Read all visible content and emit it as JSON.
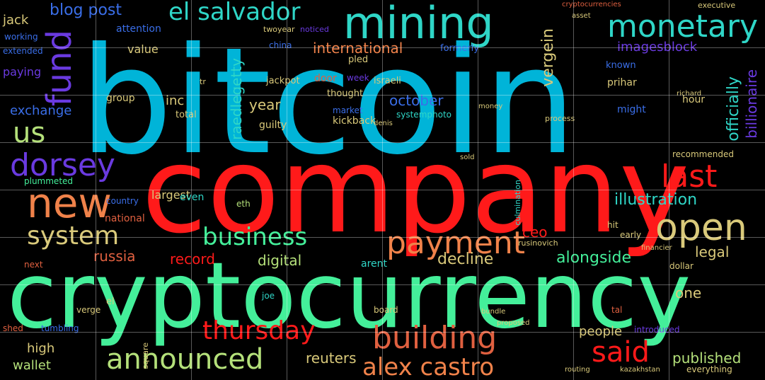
{
  "words": {
    "bitcoin": "bitcoin",
    "company": "company",
    "cryptocurrency": "cryptocurrency",
    "mining": "mining",
    "monetary": "monetary",
    "el_salvador": "el salvador",
    "blog_post": "blog post",
    "jack": "jack",
    "fund": "fund",
    "us": "us",
    "dorsey": "dorsey",
    "new": "new",
    "system": "system",
    "business": "business",
    "payment": "payment",
    "open": "open",
    "last": "last",
    "thursday": "thursday",
    "building": "building",
    "said": "said",
    "announced": "announced",
    "alex_castro": "alex castro",
    "exchange": "exchange",
    "international": "international",
    "october": "october",
    "illustration": "illustration",
    "russia": "russia",
    "record": "record",
    "decline": "decline",
    "digital": "digital",
    "alongside": "alongside",
    "reuters": "reuters",
    "published": "published",
    "people": "people",
    "legal": "legal",
    "ceo": "ceo",
    "one": "one",
    "high": "high",
    "wallet": "wallet",
    "vergein": "vergein",
    "officially": "officially",
    "billionaire": "billionaire",
    "imagesblock": "imagesblock",
    "raedlegetty": "raedlegetty",
    "year": "year",
    "inc": "inc",
    "value": "value",
    "attention": "attention",
    "largest": "largest",
    "even": "even",
    "national": "national",
    "country": "country",
    "guilty": "guilty",
    "kickback": "kickback",
    "systemphoto": "systemphoto",
    "thought": "thought",
    "israeli": "israeli",
    "prihar": "prihar",
    "might": "might",
    "hour": "hour",
    "known": "known",
    "eth": "eth",
    "market": "market",
    "total": "total",
    "group": "group",
    "jackpot": "jackpot",
    "door": "door",
    "pled": "pled",
    "week": "week",
    "formerly": "formerly",
    "china": "china",
    "paying": "paying",
    "working": "working",
    "extended": "extended",
    "recommended": "recommended",
    "plummeted": "plummeted",
    "next": "next",
    "arent": "arent",
    "board": "board",
    "joe": "joe",
    "verge": "verge",
    "tumbling": "tumbling",
    "shed": "shed",
    "el": "el",
    "everything": "everything",
    "dollar": "dollar",
    "early": "early",
    "hit": "hit",
    "introduced": "introduced",
    "kazakhstan": "kazakhstan",
    "routing": "routing",
    "tal": "tal",
    "executive": "executive",
    "asset": "asset",
    "cryptocurrencies": "cryptocurrencies",
    "twoyear": "twoyear",
    "noticed": "noticed",
    "process": "process",
    "culmination": "culmination",
    "rusinovich": "rusinovich",
    "square": "square",
    "tr": "tr",
    "denis": "denis",
    "money": "money",
    "bundle": "bundle",
    "proposed": "proposed",
    "richard": "richard",
    "financier": "financier",
    "sold": "sold"
  },
  "colors": {
    "cyan": "#00b4d8",
    "red": "#ff1a1a",
    "green": "#44ef9a",
    "teal": "#2fd6c7",
    "orange": "#f0824a",
    "tan": "#d9c97a",
    "purple": "#6a3ae0",
    "blue": "#3a6ee8",
    "lime": "#b4e07a",
    "salmon": "#e06040"
  }
}
